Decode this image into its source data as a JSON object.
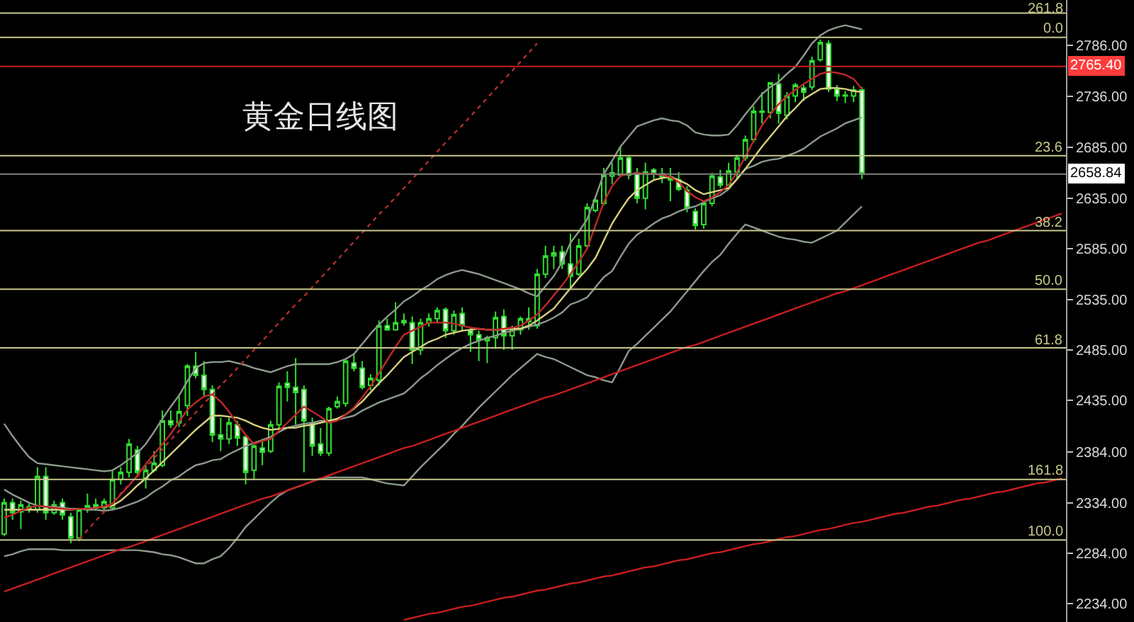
{
  "chart_data": {
    "type": "candlestick",
    "title": "黄金日线图",
    "categories": [
      null,
      null,
      null,
      null,
      null,
      null,
      null,
      null,
      null,
      null,
      null,
      null,
      null,
      null,
      null,
      null,
      null,
      null,
      null,
      null,
      null,
      null,
      null,
      null,
      null,
      null,
      null,
      null,
      null,
      null,
      null,
      null,
      null,
      null,
      null,
      null,
      null,
      null,
      null,
      null,
      null,
      null,
      null,
      null,
      null,
      null,
      null,
      null,
      null,
      null,
      null,
      null,
      null,
      null,
      null,
      null,
      null,
      null,
      null,
      null,
      null,
      null,
      null,
      null,
      null,
      null,
      null,
      null,
      null,
      null,
      null,
      null,
      null,
      null,
      null,
      null,
      null,
      null,
      null,
      null,
      null,
      null,
      null,
      null,
      null,
      null,
      null,
      null,
      null,
      null,
      null,
      null,
      null,
      null,
      null,
      null,
      null,
      null,
      null,
      null,
      null,
      null,
      null,
      null,
      null,
      null,
      null,
      null,
      null,
      null,
      null,
      null,
      null,
      null,
      null,
      null,
      null,
      null,
      null,
      null,
      null,
      null,
      null,
      null,
      null,
      null,
      null,
      null
    ],
    "ohlc": [
      [
        2303,
        2338,
        2301,
        2334
      ],
      [
        2334,
        2338,
        2317,
        2324
      ],
      [
        2325,
        2336,
        2308,
        2332
      ],
      [
        2330,
        2334,
        2324,
        2328
      ],
      [
        2327,
        2369,
        2324,
        2360
      ],
      [
        2360,
        2369,
        2317,
        2324
      ],
      [
        2324,
        2336,
        2322,
        2332
      ],
      [
        2334,
        2338,
        2317,
        2322
      ],
      [
        2320,
        2324,
        2294,
        2299
      ],
      [
        2299,
        2329,
        2296,
        2327
      ],
      [
        2327,
        2343,
        2324,
        2331
      ],
      [
        2332,
        2338,
        2326,
        2329
      ],
      [
        2329,
        2338,
        2324,
        2335
      ],
      [
        2329,
        2366,
        2327,
        2357
      ],
      [
        2357,
        2369,
        2352,
        2364
      ],
      [
        2364,
        2397,
        2359,
        2392
      ],
      [
        2386,
        2390,
        2359,
        2364
      ],
      [
        2358,
        2371,
        2348,
        2366
      ],
      [
        2366,
        2385,
        2364,
        2373
      ],
      [
        2371,
        2425,
        2369,
        2415
      ],
      [
        2415,
        2425,
        2408,
        2411
      ],
      [
        2413,
        2441,
        2409,
        2424
      ],
      [
        2430,
        2471,
        2420,
        2469
      ],
      [
        2469,
        2483,
        2457,
        2460
      ],
      [
        2460,
        2474,
        2439,
        2446
      ],
      [
        2446,
        2450,
        2394,
        2401
      ],
      [
        2401,
        2418,
        2385,
        2397
      ],
      [
        2397,
        2418,
        2392,
        2413
      ],
      [
        2411,
        2415,
        2390,
        2398
      ],
      [
        2399,
        2401,
        2352,
        2364
      ],
      [
        2366,
        2392,
        2357,
        2390
      ],
      [
        2388,
        2397,
        2371,
        2384
      ],
      [
        2385,
        2415,
        2383,
        2411
      ],
      [
        2411,
        2453,
        2406,
        2449
      ],
      [
        2452,
        2464,
        2434,
        2448
      ],
      [
        2448,
        2477,
        2411,
        2443
      ],
      [
        2446,
        2450,
        2364,
        2415
      ],
      [
        2413,
        2418,
        2380,
        2390
      ],
      [
        2392,
        2408,
        2380,
        2383
      ],
      [
        2383,
        2429,
        2380,
        2427
      ],
      [
        2429,
        2439,
        2427,
        2434
      ],
      [
        2432,
        2476,
        2429,
        2474
      ],
      [
        2472,
        2481,
        2464,
        2467
      ],
      [
        2467,
        2474,
        2446,
        2448
      ],
      [
        2450,
        2461,
        2445,
        2457
      ],
      [
        2455,
        2514,
        2450,
        2509
      ],
      [
        2509,
        2516,
        2504,
        2505
      ],
      [
        2505,
        2532,
        2504,
        2512
      ],
      [
        2512,
        2521,
        2509,
        2514
      ],
      [
        2512,
        2518,
        2471,
        2485
      ],
      [
        2485,
        2516,
        2480,
        2512
      ],
      [
        2512,
        2521,
        2508,
        2516
      ],
      [
        2516,
        2527,
        2512,
        2524
      ],
      [
        2525,
        2527,
        2497,
        2504
      ],
      [
        2504,
        2524,
        2500,
        2520
      ],
      [
        2521,
        2527,
        2504,
        2509
      ],
      [
        2504,
        2507,
        2483,
        2500
      ],
      [
        2500,
        2504,
        2474,
        2495
      ],
      [
        2494,
        2499,
        2472,
        2497
      ],
      [
        2497,
        2523,
        2486,
        2517
      ],
      [
        2518,
        2525,
        2485,
        2499
      ],
      [
        2499,
        2509,
        2485,
        2505
      ],
      [
        2505,
        2518,
        2500,
        2516
      ],
      [
        2516,
        2527,
        2505,
        2513
      ],
      [
        2509,
        2565,
        2506,
        2560
      ],
      [
        2560,
        2588,
        2556,
        2578
      ],
      [
        2578,
        2588,
        2565,
        2581
      ],
      [
        2582,
        2588,
        2565,
        2570
      ],
      [
        2570,
        2600,
        2546,
        2558
      ],
      [
        2560,
        2595,
        2558,
        2588
      ],
      [
        2588,
        2630,
        2586,
        2626
      ],
      [
        2623,
        2637,
        2621,
        2633
      ],
      [
        2630,
        2665,
        2628,
        2658
      ],
      [
        2657,
        2670,
        2649,
        2660
      ],
      [
        2658,
        2686,
        2656,
        2675
      ],
      [
        2675,
        2677,
        2654,
        2658
      ],
      [
        2660,
        2665,
        2630,
        2635
      ],
      [
        2635,
        2670,
        2624,
        2661
      ],
      [
        2663,
        2665,
        2654,
        2659
      ],
      [
        2659,
        2665,
        2650,
        2656
      ],
      [
        2656,
        2665,
        2632,
        2653
      ],
      [
        2653,
        2661,
        2642,
        2644
      ],
      [
        2643,
        2647,
        2621,
        2625
      ],
      [
        2622,
        2625,
        2604,
        2608
      ],
      [
        2609,
        2633,
        2605,
        2630
      ],
      [
        2630,
        2660,
        2627,
        2657
      ],
      [
        2656,
        2663,
        2645,
        2648
      ],
      [
        2648,
        2670,
        2647,
        2662
      ],
      [
        2661,
        2678,
        2654,
        2675
      ],
      [
        2675,
        2697,
        2672,
        2693
      ],
      [
        2693,
        2726,
        2690,
        2721
      ],
      [
        2721,
        2740,
        2709,
        2720
      ],
      [
        2720,
        2750,
        2714,
        2749
      ],
      [
        2748,
        2758,
        2709,
        2719
      ],
      [
        2717,
        2740,
        2713,
        2736
      ],
      [
        2736,
        2749,
        2730,
        2747
      ],
      [
        2744,
        2747,
        2731,
        2740
      ],
      [
        2745,
        2775,
        2742,
        2771
      ],
      [
        2772,
        2792,
        2770,
        2789
      ],
      [
        2788,
        2791,
        2740,
        2743
      ],
      [
        2743,
        2747,
        2731,
        2736
      ],
      [
        2737,
        2741,
        2729,
        2736
      ],
      [
        2736,
        2746,
        2730,
        2742
      ],
      [
        2742,
        2745,
        2654,
        2659
      ],
      null,
      null,
      null,
      null,
      null,
      null,
      null,
      null,
      null,
      null,
      null,
      null,
      null,
      null,
      null,
      null,
      null,
      null,
      null,
      null,
      null,
      null,
      null,
      null
    ],
    "color": "#33dd33",
    "series": [
      {
        "type": "line",
        "color": "#8c9a8c",
        "values": [
          2412,
          2400,
          2389,
          2379,
          2373,
          2372,
          2371,
          2370,
          2369,
          2368,
          2367,
          2366,
          2365,
          2366,
          2371,
          2377,
          2383,
          2392,
          2404,
          2417,
          2429,
          2440,
          2454,
          2467,
          2472,
          2473,
          2473,
          2474,
          2472,
          2470,
          2467,
          2465,
          2463,
          2466,
          2469,
          2471,
          2471,
          2471,
          2471,
          2471,
          2473,
          2476,
          2481,
          2491,
          2501,
          2510,
          2518,
          2525,
          2533,
          2538,
          2544,
          2549,
          2555,
          2559,
          2562,
          2564,
          2562,
          2560,
          2557,
          2554,
          2551,
          2548,
          2545,
          2541,
          2538,
          2548,
          2558,
          2572,
          2591,
          2602,
          2614,
          2636,
          2659,
          2672,
          2686,
          2696,
          2706,
          2709,
          2712,
          2714,
          2712,
          2711,
          2707,
          2700,
          2698,
          2697,
          2697,
          2698,
          2707,
          2718,
          2728,
          2738,
          2745,
          2750,
          2758,
          2765,
          2776,
          2788,
          2796,
          2801,
          2804,
          2806,
          2804,
          2802,
          null,
          null,
          null,
          null,
          null,
          null,
          null,
          null,
          null,
          null,
          null,
          null,
          null,
          null,
          null,
          null,
          null,
          null,
          null,
          null,
          null,
          null,
          null,
          null
        ]
      },
      {
        "type": "line",
        "color": "#8c9a8c",
        "values": [
          2347,
          2342,
          2338,
          2334,
          2331,
          2330,
          2330,
          2329,
          2328,
          2328,
          2327,
          2327,
          2326,
          2327,
          2329,
          2332,
          2335,
          2339,
          2345,
          2350,
          2356,
          2360,
          2366,
          2371,
          2373,
          2376,
          2377,
          2382,
          2386,
          2390,
          2393,
          2396,
          2399,
          2404,
          2408,
          2410,
          2412,
          2413,
          2415,
          2415,
          2416,
          2418,
          2420,
          2425,
          2429,
          2433,
          2436,
          2439,
          2442,
          2449,
          2457,
          2463,
          2470,
          2476,
          2482,
          2487,
          2491,
          2494,
          2497,
          2499,
          2502,
          2504,
          2506,
          2508,
          2510,
          2513,
          2517,
          2522,
          2530,
          2533,
          2537,
          2547,
          2557,
          2563,
          2577,
          2590,
          2599,
          2604,
          2610,
          2615,
          2618,
          2622,
          2625,
          2627,
          2631,
          2635,
          2638,
          2644,
          2654,
          2664,
          2667,
          2671,
          2673,
          2674,
          2677,
          2680,
          2684,
          2690,
          2696,
          2700,
          2704,
          2709,
          2712,
          2715,
          null,
          null,
          null,
          null,
          null,
          null,
          null,
          null,
          null,
          null,
          null,
          null,
          null,
          null,
          null,
          null,
          null,
          null,
          null,
          null,
          null,
          null,
          null,
          null
        ]
      },
      {
        "type": "line",
        "color": "#8c9a8c",
        "values": [
          2281,
          2283,
          2286,
          2288,
          2288,
          2288,
          2288,
          2287,
          2287,
          2287,
          2287,
          2287,
          2287,
          2287,
          2287,
          2287,
          2287,
          2286,
          2285,
          2283,
          2282,
          2280,
          2277,
          2274,
          2274,
          2278,
          2281,
          2289,
          2299,
          2310,
          2318,
          2326,
          2334,
          2341,
          2346,
          2349,
          2352,
          2355,
          2358,
          2359,
          2359,
          2359,
          2359,
          2359,
          2357,
          2355,
          2353,
          2352,
          2351,
          2360,
          2369,
          2377,
          2385,
          2393,
          2402,
          2410,
          2419,
          2428,
          2436,
          2444,
          2452,
          2460,
          2467,
          2474,
          2481,
          2478,
          2476,
          2472,
          2468,
          2464,
          2460,
          2458,
          2455,
          2453,
          2468,
          2484,
          2491,
          2499,
          2507,
          2515,
          2523,
          2533,
          2543,
          2553,
          2563,
          2572,
          2579,
          2590,
          2600,
          2609,
          2606,
          2603,
          2600,
          2597,
          2595,
          2594,
          2592,
          2591,
          2595,
          2599,
          2603,
          2611,
          2619,
          2627,
          null,
          null,
          null,
          null,
          null,
          null,
          null,
          null,
          null,
          null,
          null,
          null,
          null,
          null,
          null,
          null,
          null,
          null,
          null,
          null,
          null,
          null,
          null,
          null
        ]
      },
      {
        "type": "line",
        "color": "#d8d080",
        "values": [
          2327,
          2327,
          2327,
          2327,
          2327,
          2327,
          2327,
          2327,
          2327,
          2328,
          2328,
          2329,
          2330,
          2331,
          2336,
          2343,
          2351,
          2358,
          2366,
          2374,
          2382,
          2390,
          2398,
          2406,
          2413,
          2420,
          2420,
          2419,
          2418,
          2415,
          2411,
          2408,
          2406,
          2407,
          2408,
          2408,
          2410,
          2411,
          2413,
          2415,
          2417,
          2421,
          2427,
          2434,
          2443,
          2452,
          2460,
          2469,
          2478,
          2483,
          2488,
          2493,
          2496,
          2500,
          2502,
          2504,
          2505,
          2506,
          2505,
          2505,
          2505,
          2506,
          2506,
          2509,
          2514,
          2520,
          2526,
          2536,
          2546,
          2556,
          2565,
          2576,
          2593,
          2610,
          2623,
          2635,
          2643,
          2648,
          2653,
          2655,
          2656,
          2653,
          2649,
          2643,
          2639,
          2641,
          2643,
          2645,
          2654,
          2664,
          2675,
          2686,
          2696,
          2706,
          2716,
          2724,
          2733,
          2738,
          2743,
          2744,
          2744,
          2743,
          2741,
          2740,
          null,
          null,
          null,
          null,
          null,
          null,
          null,
          null,
          null,
          null,
          null,
          null,
          null,
          null,
          null,
          null,
          null,
          null,
          null,
          null,
          null,
          null,
          null,
          null
        ]
      },
      {
        "type": "line",
        "color": "#c02828",
        "values": [
          2319,
          2322,
          2326,
          2329,
          2331,
          2330,
          2329,
          2328,
          2327,
          2328,
          2328,
          2329,
          2330,
          2333,
          2342,
          2351,
          2361,
          2372,
          2382,
          2392,
          2402,
          2414,
          2426,
          2433,
          2439,
          2441,
          2434,
          2424,
          2412,
          2401,
          2392,
          2395,
          2397,
          2405,
          2413,
          2421,
          2429,
          2424,
          2419,
          2413,
          2415,
          2421,
          2428,
          2438,
          2449,
          2462,
          2475,
          2488,
          2500,
          2504,
          2508,
          2512,
          2512,
          2512,
          2511,
          2509,
          2507,
          2506,
          2505,
          2505,
          2506,
          2507,
          2509,
          2514,
          2520,
          2529,
          2539,
          2549,
          2560,
          2572,
          2585,
          2608,
          2631,
          2647,
          2657,
          2659,
          2660,
          2659,
          2659,
          2658,
          2656,
          2651,
          2642,
          2636,
          2632,
          2636,
          2641,
          2648,
          2661,
          2676,
          2692,
          2707,
          2718,
          2728,
          2736,
          2742,
          2748,
          2753,
          2758,
          2760,
          2759,
          2757,
          2753,
          2743,
          null,
          null,
          null,
          null,
          null,
          null,
          null,
          null,
          null,
          null,
          null,
          null,
          null,
          null,
          null,
          null,
          null,
          null,
          null,
          null,
          null,
          null,
          null,
          null
        ]
      },
      {
        "type": "line",
        "color": "#c81e1e",
        "values": [
          2246,
          2249,
          2252,
          2255,
          2258,
          2261,
          2264,
          2267,
          2270,
          2273,
          2276,
          2279,
          2282,
          2285,
          2288,
          2290,
          2293,
          2296,
          2299,
          2302,
          2305,
          2308,
          2311,
          2314,
          2317,
          2320,
          2323,
          2326,
          2329,
          2332,
          2335,
          2338,
          2340,
          2343,
          2346,
          2349,
          2352,
          2355,
          2358,
          2361,
          2364,
          2367,
          2370,
          2373,
          2376,
          2379,
          2382,
          2385,
          2388,
          2390,
          2393,
          2396,
          2399,
          2402,
          2405,
          2408,
          2411,
          2414,
          2417,
          2420,
          2423,
          2426,
          2429,
          2432,
          2435,
          2438,
          2440,
          2443,
          2446,
          2449,
          2452,
          2455,
          2458,
          2461,
          2464,
          2467,
          2470,
          2473,
          2476,
          2479,
          2482,
          2485,
          2488,
          2490,
          2493,
          2496,
          2499,
          2502,
          2505,
          2508,
          2511,
          2514,
          2517,
          2520,
          2523,
          2526,
          2529,
          2532,
          2535,
          2538,
          2541,
          2543,
          2546,
          2549,
          2552,
          2555,
          2558,
          2561,
          2564,
          2567,
          2570,
          2573,
          2576,
          2579,
          2582,
          2585,
          2588,
          2591,
          2593,
          2596,
          2599,
          2602,
          2605,
          2608,
          2611,
          2614,
          2617,
          2620
        ]
      },
      {
        "type": "line",
        "color": "#c81e1e",
        "values": [
          null,
          null,
          null,
          null,
          null,
          null,
          null,
          null,
          null,
          null,
          null,
          null,
          null,
          null,
          null,
          null,
          null,
          null,
          null,
          null,
          null,
          null,
          null,
          null,
          null,
          null,
          null,
          null,
          null,
          null,
          null,
          null,
          null,
          null,
          null,
          null,
          null,
          null,
          null,
          null,
          null,
          null,
          null,
          null,
          null,
          null,
          null,
          null,
          2218,
          2220,
          2222,
          2224,
          2225,
          2227,
          2229,
          2231,
          2232,
          2234,
          2236,
          2238,
          2240,
          2241,
          2243,
          2245,
          2247,
          2248,
          2250,
          2252,
          2254,
          2255,
          2257,
          2259,
          2261,
          2262,
          2264,
          2266,
          2268,
          2270,
          2271,
          2273,
          2275,
          2277,
          2278,
          2280,
          2282,
          2284,
          2285,
          2287,
          2289,
          2291,
          2293,
          2294,
          2296,
          2298,
          2300,
          2301,
          2303,
          2305,
          2307,
          2308,
          2310,
          2312,
          2314,
          2315,
          2317,
          2319,
          2321,
          2323,
          2324,
          2326,
          2328,
          2330,
          2331,
          2333,
          2335,
          2337,
          2338,
          2340,
          2342,
          2344,
          2345,
          2347,
          2349,
          2351,
          2353,
          2354,
          2356,
          2358
        ]
      },
      {
        "type": "line",
        "color": "#b03030",
        "line_style": "dotted",
        "values": [
          null,
          null,
          null,
          null,
          null,
          null,
          null,
          null,
          null,
          2298,
          2307,
          2316,
          2325,
          2334,
          2343,
          2352,
          2360,
          2369,
          2378,
          2387,
          2396,
          2405,
          2414,
          2423,
          2432,
          2441,
          2450,
          2458,
          2467,
          2476,
          2485,
          2494,
          2503,
          2512,
          2521,
          2530,
          2538,
          2547,
          2556,
          2565,
          2574,
          2583,
          2592,
          2601,
          2610,
          2619,
          2627,
          2636,
          2645,
          2654,
          2663,
          2672,
          2681,
          2690,
          2699,
          2707,
          2716,
          2725,
          2734,
          2743,
          2752,
          2761,
          2770,
          2779,
          2788,
          null,
          null,
          null,
          null,
          null,
          null,
          null,
          null,
          null,
          null,
          null,
          null,
          null,
          null,
          null,
          null,
          null,
          null,
          null,
          null,
          null,
          null,
          null,
          null,
          null,
          null,
          null,
          null,
          null,
          null,
          null,
          null,
          null,
          null,
          null,
          null,
          null,
          null,
          null,
          null,
          null,
          null,
          null,
          null,
          null,
          null,
          null,
          null,
          null,
          null,
          null,
          null,
          null,
          null,
          null,
          null,
          null,
          null,
          null,
          null,
          null,
          null,
          null
        ]
      }
    ],
    "ylim": [
      2216,
      2831
    ],
    "yticks": [
      {
        "value": 2786,
        "label": "2786.00"
      },
      {
        "value": 2736,
        "label": "2736.00"
      },
      {
        "value": 2685,
        "label": "2685.00"
      },
      {
        "value": 2635,
        "label": "2635.00"
      },
      {
        "value": 2585,
        "label": "2585.00"
      },
      {
        "value": 2535,
        "label": "2535.00"
      },
      {
        "value": 2485,
        "label": "2485.00"
      },
      {
        "value": 2435,
        "label": "2435.00"
      },
      {
        "value": 2384,
        "label": "2384.00"
      },
      {
        "value": 2334,
        "label": "2334.00"
      },
      {
        "value": 2284,
        "label": "2284.00"
      },
      {
        "value": 2234,
        "label": "2234.00"
      }
    ],
    "ref_lines": [
      {
        "axis": "y",
        "value": 2818,
        "color": "#c8c88c"
      },
      {
        "axis": "y",
        "value": 2794,
        "color": "#c8c88c"
      },
      {
        "axis": "y",
        "value": 2765.4,
        "label": "2765.40",
        "color": "#c81e1e"
      },
      {
        "axis": "y",
        "value": 2677,
        "color": "#c8c88c"
      },
      {
        "axis": "y",
        "value": 2658.84,
        "label": "2658.84",
        "color": "#808080"
      },
      {
        "axis": "y",
        "value": 2603,
        "color": "#c8c88c"
      },
      {
        "axis": "y",
        "value": 2545,
        "color": "#c8c88c"
      },
      {
        "axis": "y",
        "value": 2487,
        "color": "#c8c88c"
      },
      {
        "axis": "y",
        "value": 2357,
        "color": "#c8c88c"
      },
      {
        "axis": "y",
        "value": 2297,
        "color": "#c8c88c"
      }
    ],
    "annotations": [
      {
        "text": "261.8",
        "y": 2818
      },
      {
        "text": "0.0",
        "y": 2794
      },
      {
        "text": "23.6",
        "y": 2677
      },
      {
        "text": "38.2",
        "y": 2603
      },
      {
        "text": "50.0",
        "y": 2545
      },
      {
        "text": "61.8",
        "y": 2487
      },
      {
        "text": "161.8",
        "y": 2357
      },
      {
        "text": "100.0",
        "y": 2297
      }
    ],
    "grid": false,
    "tick_labels": "y"
  }
}
